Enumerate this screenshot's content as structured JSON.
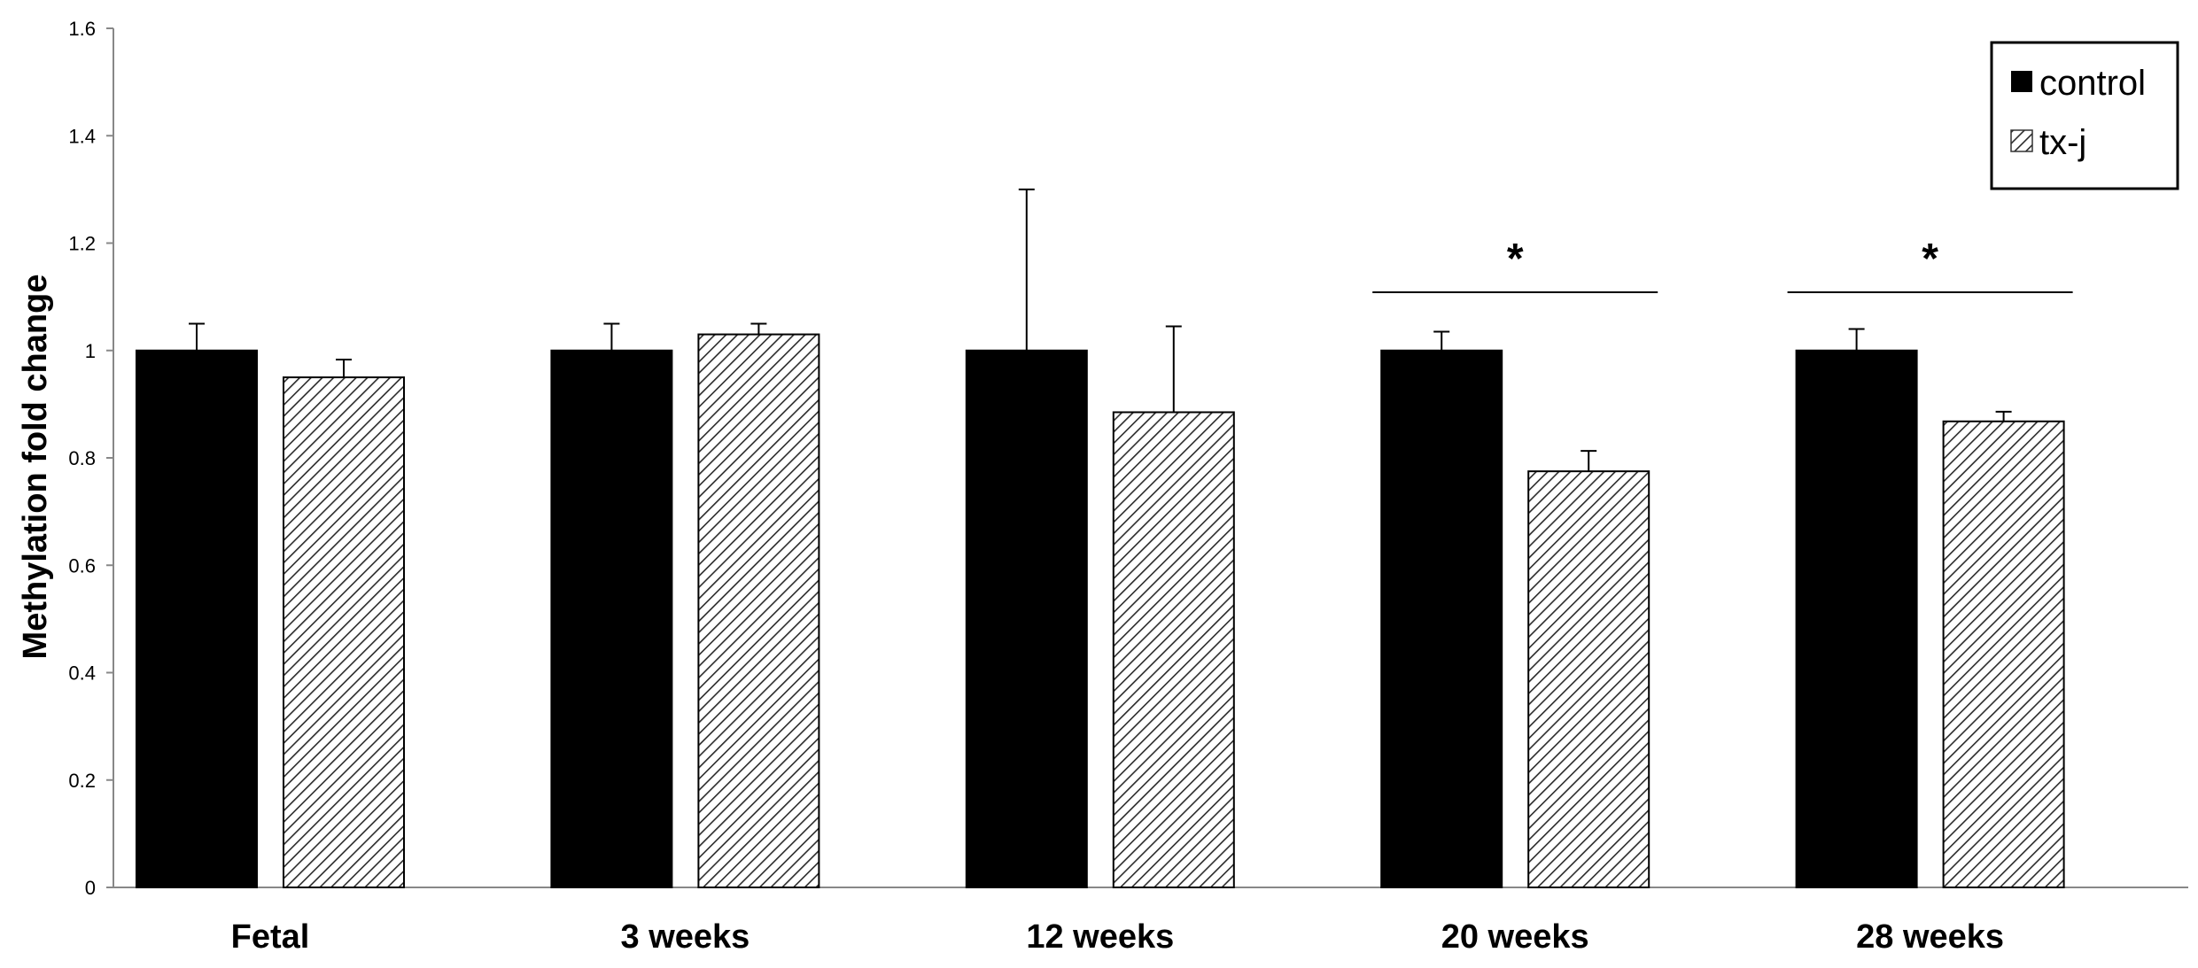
{
  "chart_data": {
    "type": "bar",
    "title": "",
    "xlabel": "",
    "ylabel": "Methylation fold change",
    "ylim": [
      0,
      1.6
    ],
    "yticks": [
      0,
      0.2,
      0.4,
      0.6,
      0.8,
      1,
      1.2,
      1.4,
      1.6
    ],
    "ytick_labels": [
      "0",
      "0.2",
      "0.4",
      "0.6",
      "0.8",
      "1",
      "1.2",
      "1.4",
      "1.6"
    ],
    "grid": false,
    "legend_position": "top-right",
    "categories": [
      "Fetal",
      "3 weeks",
      "12 weeks",
      "20 weeks",
      "28 weeks"
    ],
    "series": [
      {
        "name": "control",
        "color": "#000000",
        "pattern": "solid",
        "values": [
          1.0,
          1.0,
          1.0,
          1.0,
          1.0
        ],
        "errors": [
          0.05,
          0.05,
          0.3,
          0.035,
          0.04
        ]
      },
      {
        "name": "tx-j",
        "color": "#ffffff",
        "pattern": "diagonal-hatch",
        "values": [
          0.95,
          1.03,
          0.885,
          0.775,
          0.868
        ],
        "errors": [
          0.033,
          0.02,
          0.16,
          0.038,
          0.018
        ]
      }
    ],
    "annotations": [
      {
        "category": "20 weeks",
        "text": "*",
        "type": "significance"
      },
      {
        "category": "28 weeks",
        "text": "*",
        "type": "significance"
      }
    ]
  }
}
